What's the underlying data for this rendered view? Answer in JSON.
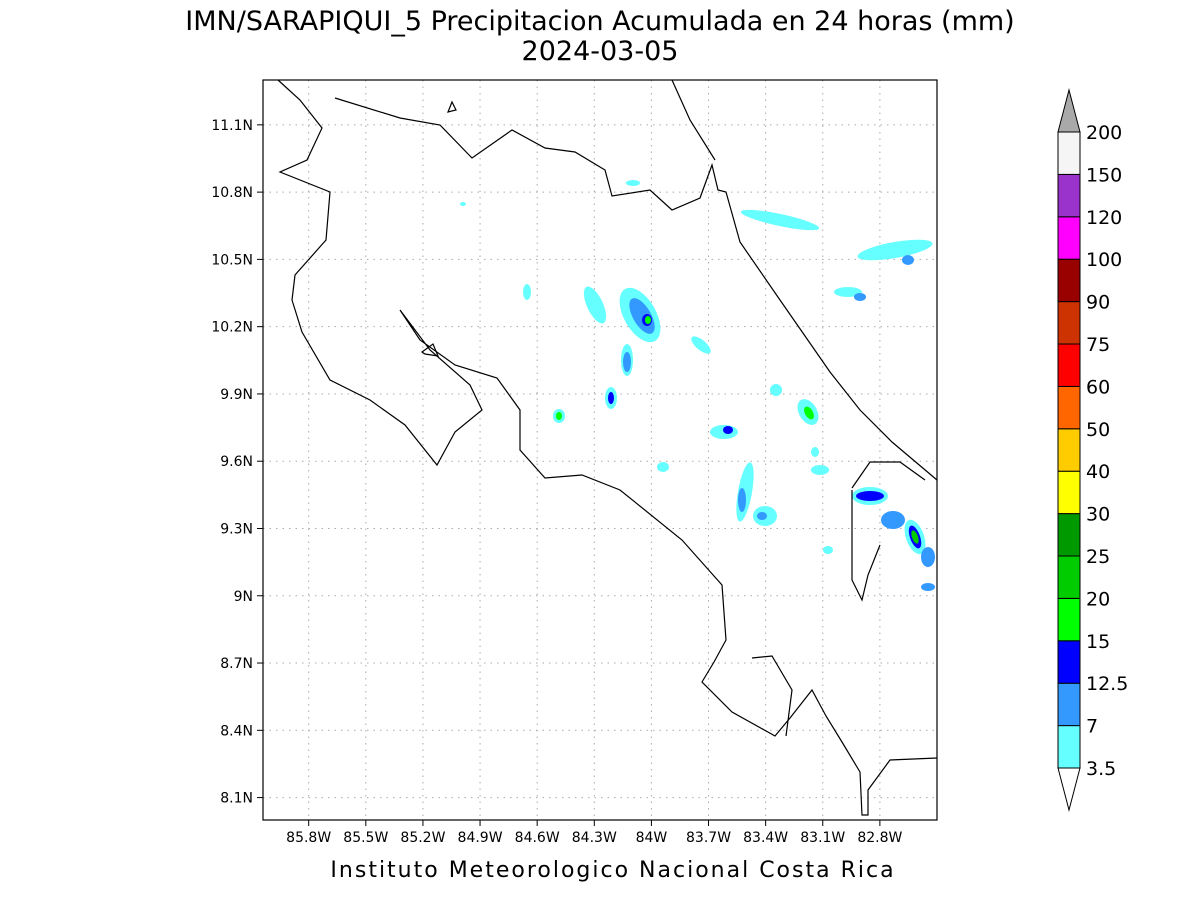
{
  "map": {
    "title": "IMN/SARAPIQUI_5 Precipitacion Acumulada en 24 horas (mm)",
    "subtitle": "2024-03-05",
    "footer": "Instituto Meteorologico Nacional Costa Rica",
    "xlim": [
      -86.04,
      -82.5
    ],
    "ylim": [
      8.0,
      11.3
    ],
    "grid": true,
    "xticks": [
      {
        "value": -85.8,
        "label": "85.8W"
      },
      {
        "value": -85.5,
        "label": "85.5W"
      },
      {
        "value": -85.2,
        "label": "85.2W"
      },
      {
        "value": -84.9,
        "label": "84.9W"
      },
      {
        "value": -84.6,
        "label": "84.6W"
      },
      {
        "value": -84.3,
        "label": "84.3W"
      },
      {
        "value": -84.0,
        "label": "84W"
      },
      {
        "value": -83.7,
        "label": "83.7W"
      },
      {
        "value": -83.4,
        "label": "83.4W"
      },
      {
        "value": -83.1,
        "label": "83.1W"
      },
      {
        "value": -82.8,
        "label": "82.8W"
      }
    ],
    "yticks": [
      {
        "value": 8.1,
        "label": "8.1N"
      },
      {
        "value": 8.4,
        "label": "8.4N"
      },
      {
        "value": 8.7,
        "label": "8.7N"
      },
      {
        "value": 9.0,
        "label": "9N"
      },
      {
        "value": 9.3,
        "label": "9.3N"
      },
      {
        "value": 9.6,
        "label": "9.6N"
      },
      {
        "value": 9.9,
        "label": "9.9N"
      },
      {
        "value": 10.2,
        "label": "10.2N"
      },
      {
        "value": 10.5,
        "label": "10.5N"
      },
      {
        "value": 10.8,
        "label": "10.8N"
      },
      {
        "value": 11.1,
        "label": "11.1N"
      }
    ],
    "colorbar": {
      "levels": [
        3.5,
        7,
        12.5,
        15,
        20,
        25,
        30,
        40,
        50,
        60,
        75,
        90,
        100,
        120,
        150,
        200
      ],
      "colors": [
        "#66ffff",
        "#3399ff",
        "#0000ff",
        "#00ff00",
        "#00cc00",
        "#009900",
        "#ffff00",
        "#ffcc00",
        "#ff6600",
        "#ff0000",
        "#cc3300",
        "#990000",
        "#ff00ff",
        "#9933cc",
        "#f5f5f5"
      ],
      "under_color": "#ffffff",
      "over_color": "#a9a9a9"
    }
  }
}
